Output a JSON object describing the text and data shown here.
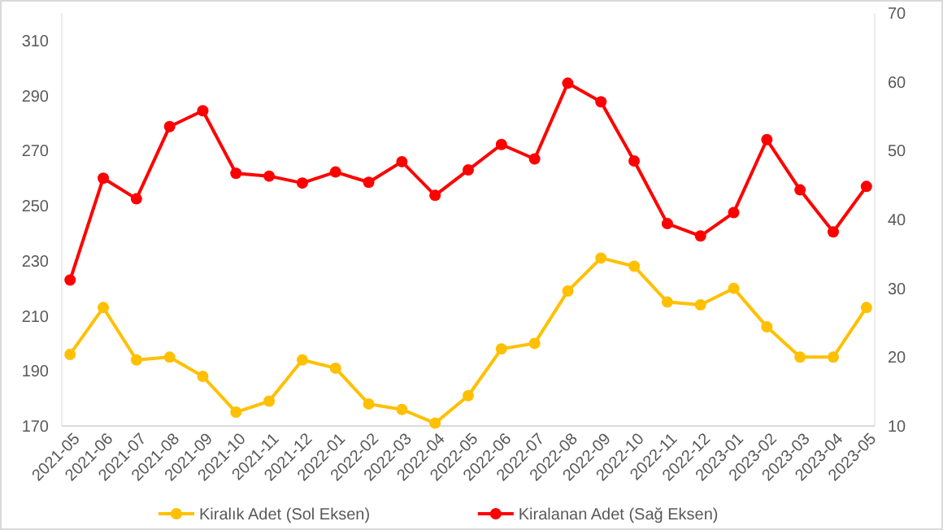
{
  "chart_data": {
    "type": "line",
    "categories": [
      "2021-05",
      "2021-06",
      "2021-07",
      "2021-08",
      "2021-09",
      "2021-10",
      "2021-11",
      "2021-12",
      "2022-01",
      "2022-02",
      "2022-03",
      "2022-04",
      "2022-05",
      "2022-06",
      "2022-07",
      "2022-08",
      "2022-09",
      "2022-10",
      "2022-11",
      "2022-12",
      "2023-01",
      "2023-02",
      "2023-03",
      "2023-04",
      "2023-05"
    ],
    "series": [
      {
        "name": "Kiralık Adet (Sol Eksen)",
        "color": "#ffc000",
        "values": [
          196,
          213,
          194,
          195,
          188,
          175,
          179,
          194,
          191,
          178,
          176,
          171,
          181,
          198,
          200,
          219,
          231,
          228,
          215,
          214,
          220,
          206,
          195,
          195,
          213
        ]
      },
      {
        "name": "Kiralanan Adet (Sağ Eksen)",
        "color": "#ff0000",
        "axis": "y2",
        "values": [
          31.2,
          46,
          43,
          53.5,
          55.8,
          46.7,
          46.3,
          45.3,
          46.9,
          45.4,
          48.4,
          43.5,
          47.2,
          50.9,
          48.8,
          59.8,
          57.1,
          48.5,
          39.4,
          37.6,
          41,
          51.6,
          44.3,
          38.2,
          44.8
        ]
      }
    ],
    "ylim": [
      170,
      320
    ],
    "yticks": [
      170,
      190,
      210,
      230,
      250,
      270,
      290,
      310
    ],
    "y2lim": [
      10,
      70
    ],
    "y2ticks": [
      10,
      20,
      30,
      40,
      50,
      60,
      70
    ],
    "marker": "circle",
    "line_style": "solid",
    "grid": false,
    "legend": "bottom"
  }
}
